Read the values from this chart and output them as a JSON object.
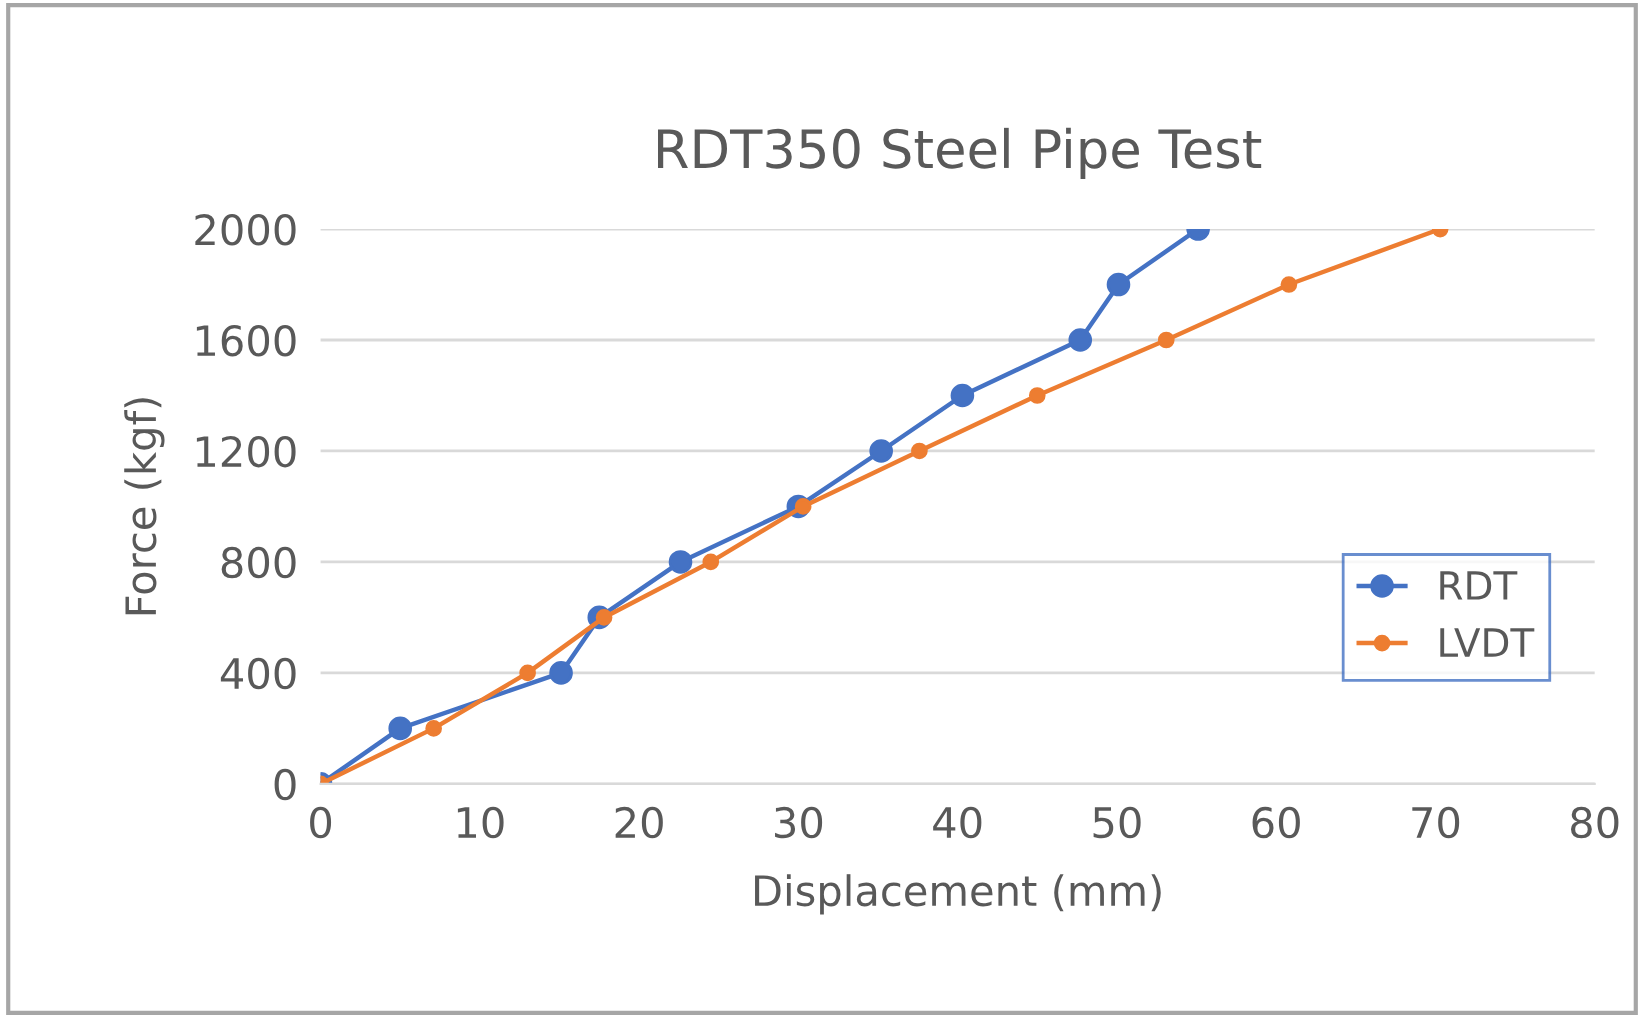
{
  "chart_data": {
    "type": "line",
    "title": "RDT350 Steel Pipe Test",
    "xlabel": "Displacement (mm)",
    "ylabel": "Force (kgf)",
    "xlim": [
      0,
      80
    ],
    "xticks": [
      0,
      10,
      20,
      30,
      40,
      50,
      60,
      70,
      80
    ],
    "ylim": [
      0,
      2000
    ],
    "yticks": [
      0,
      400,
      800,
      1200,
      1600,
      2000
    ],
    "grid": "y",
    "legend": "right",
    "marker": "circle",
    "line_style": "solid",
    "series": [
      {
        "name": "RDT",
        "color": "#4472c4",
        "x": [
          0,
          5,
          15.1,
          17.5,
          22.6,
          30,
          35.2,
          40.3,
          47.7,
          50.1,
          55.1
        ],
        "values": [
          0,
          200,
          400,
          600,
          800,
          1000,
          1200,
          1400,
          1600,
          1800,
          2000
        ]
      },
      {
        "name": "LVDT",
        "color": "#ed7d31",
        "x": [
          0,
          7.1,
          13,
          17.8,
          24.5,
          30.3,
          37.6,
          45,
          53.1,
          60.8,
          70.3
        ],
        "values": [
          0,
          200,
          400,
          600,
          800,
          1000,
          1200,
          1400,
          1600,
          1800,
          2000
        ]
      }
    ]
  }
}
